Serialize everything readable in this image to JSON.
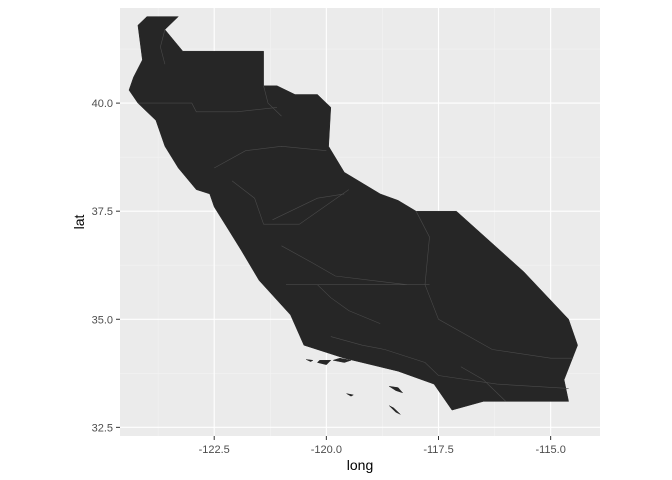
{
  "chart_data": {
    "type": "map",
    "title": "",
    "xlabel": "long",
    "ylabel": "lat",
    "xlim": [
      -124.6,
      -113.9
    ],
    "ylim": [
      32.3,
      42.2
    ],
    "x_ticks": [
      -122.5,
      -120.0,
      -117.5,
      -115.0
    ],
    "x_tick_labels": [
      "-122.5",
      "-120.0",
      "-117.5",
      "-115.0"
    ],
    "y_ticks": [
      32.5,
      35.0,
      37.5,
      40.0
    ],
    "y_tick_labels": [
      "32.5",
      "35.0",
      "37.5",
      "40.0"
    ],
    "grid": true,
    "colors": {
      "panel": "#ebebeb",
      "grid_major": "#ffffff",
      "grid_minor": "#f3f3f3",
      "fill": "#262626",
      "border": "#4a4a4a"
    },
    "regions": [
      {
        "name": "california-county-polygons",
        "outline": [
          [
            -124.0,
            42.0
          ],
          [
            -123.3,
            42.0
          ],
          [
            -123.6,
            41.7
          ],
          [
            -123.2,
            41.2
          ],
          [
            -121.4,
            41.2
          ],
          [
            -121.4,
            40.4
          ],
          [
            -121.1,
            40.4
          ],
          [
            -120.7,
            40.2
          ],
          [
            -120.2,
            40.2
          ],
          [
            -119.9,
            39.9
          ],
          [
            -119.95,
            39.0
          ],
          [
            -119.6,
            38.4
          ],
          [
            -118.8,
            37.9
          ],
          [
            -118.4,
            37.75
          ],
          [
            -118.0,
            37.5
          ],
          [
            -117.1,
            37.5
          ],
          [
            -115.6,
            36.1
          ],
          [
            -114.6,
            35.0
          ],
          [
            -114.4,
            34.4
          ],
          [
            -114.7,
            33.6
          ],
          [
            -114.6,
            33.1
          ],
          [
            -116.5,
            33.1
          ],
          [
            -117.2,
            32.9
          ],
          [
            -117.6,
            33.5
          ],
          [
            -118.4,
            33.8
          ],
          [
            -119.6,
            34.1
          ],
          [
            -120.5,
            34.4
          ],
          [
            -120.8,
            35.1
          ],
          [
            -121.5,
            35.9
          ],
          [
            -121.9,
            36.6
          ],
          [
            -122.2,
            37.1
          ],
          [
            -122.5,
            37.6
          ],
          [
            -122.6,
            37.9
          ],
          [
            -122.9,
            38.0
          ],
          [
            -123.3,
            38.5
          ],
          [
            -123.6,
            39.0
          ],
          [
            -123.8,
            39.6
          ],
          [
            -124.2,
            40.0
          ],
          [
            -124.4,
            40.3
          ],
          [
            -124.3,
            40.6
          ],
          [
            -124.1,
            41.0
          ],
          [
            -124.2,
            41.8
          ]
        ]
      },
      {
        "name": "island-santa-rosa",
        "outline": [
          [
            -120.2,
            34.0
          ],
          [
            -120.0,
            33.95
          ],
          [
            -119.9,
            34.05
          ],
          [
            -120.15,
            34.05
          ]
        ]
      },
      {
        "name": "island-santa-cruz",
        "outline": [
          [
            -119.85,
            34.05
          ],
          [
            -119.6,
            34.0
          ],
          [
            -119.45,
            34.05
          ],
          [
            -119.7,
            34.1
          ]
        ]
      },
      {
        "name": "island-santa-catalina",
        "outline": [
          [
            -118.6,
            33.45
          ],
          [
            -118.45,
            33.35
          ],
          [
            -118.3,
            33.3
          ],
          [
            -118.4,
            33.42
          ]
        ]
      },
      {
        "name": "island-san-clemente",
        "outline": [
          [
            -118.6,
            33.0
          ],
          [
            -118.45,
            32.85
          ],
          [
            -118.35,
            32.8
          ],
          [
            -118.5,
            32.95
          ]
        ]
      },
      {
        "name": "island-san-nicolas",
        "outline": [
          [
            -119.55,
            33.28
          ],
          [
            -119.4,
            33.25
          ],
          [
            -119.45,
            33.22
          ]
        ]
      },
      {
        "name": "island-san-miguel",
        "outline": [
          [
            -120.45,
            34.07
          ],
          [
            -120.3,
            34.05
          ],
          [
            -120.35,
            34.02
          ]
        ]
      }
    ],
    "boundaries": [
      [
        [
          -123.6,
          41.7
        ],
        [
          -123.7,
          41.3
        ],
        [
          -123.6,
          40.9
        ]
      ],
      [
        [
          -124.2,
          40.0
        ],
        [
          -123.0,
          40.0
        ],
        [
          -122.9,
          39.8
        ],
        [
          -122.0,
          39.8
        ],
        [
          -121.1,
          39.9
        ]
      ],
      [
        [
          -121.4,
          40.4
        ],
        [
          -121.3,
          40.0
        ],
        [
          -121.0,
          39.7
        ]
      ],
      [
        [
          -122.5,
          38.5
        ],
        [
          -121.8,
          38.9
        ],
        [
          -121.0,
          39.0
        ],
        [
          -120.0,
          38.9
        ]
      ],
      [
        [
          -122.1,
          38.2
        ],
        [
          -121.6,
          37.8
        ],
        [
          -121.4,
          37.2
        ],
        [
          -120.6,
          37.2
        ],
        [
          -119.5,
          38.0
        ]
      ],
      [
        [
          -121.2,
          37.3
        ],
        [
          -120.2,
          37.8
        ],
        [
          -119.6,
          37.9
        ]
      ],
      [
        [
          -121.0,
          36.7
        ],
        [
          -120.3,
          36.3
        ],
        [
          -119.8,
          36.0
        ],
        [
          -118.2,
          35.8
        ]
      ],
      [
        [
          -120.9,
          35.8
        ],
        [
          -118.0,
          35.8
        ],
        [
          -117.7,
          35.8
        ]
      ],
      [
        [
          -120.2,
          35.8
        ],
        [
          -119.9,
          35.5
        ],
        [
          -119.5,
          35.2
        ],
        [
          -118.8,
          34.9
        ]
      ],
      [
        [
          -118.0,
          37.5
        ],
        [
          -117.7,
          36.9
        ],
        [
          -117.8,
          35.8
        ]
      ],
      [
        [
          -117.8,
          35.8
        ],
        [
          -117.5,
          35.0
        ],
        [
          -116.3,
          34.3
        ],
        [
          -115.0,
          34.1
        ],
        [
          -114.5,
          34.1
        ]
      ],
      [
        [
          -119.9,
          34.6
        ],
        [
          -119.2,
          34.4
        ],
        [
          -118.7,
          34.3
        ]
      ],
      [
        [
          -118.7,
          34.3
        ],
        [
          -117.8,
          34.0
        ],
        [
          -117.5,
          33.7
        ],
        [
          -116.2,
          33.5
        ],
        [
          -114.6,
          33.4
        ]
      ],
      [
        [
          -117.0,
          33.9
        ],
        [
          -116.5,
          33.6
        ],
        [
          -116.0,
          33.1
        ]
      ]
    ]
  }
}
